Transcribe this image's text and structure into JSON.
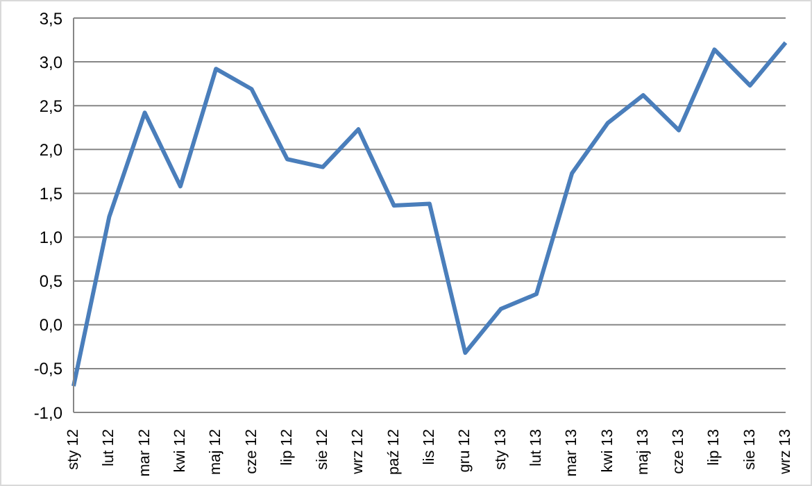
{
  "chart_data": {
    "type": "line",
    "categories": [
      "sty 12",
      "lut 12",
      "mar 12",
      "kwi 12",
      "maj 12",
      "cze 12",
      "lip 12",
      "sie 12",
      "wrz 12",
      "paź 12",
      "lis 12",
      "gru 12",
      "sty 13",
      "lut 13",
      "mar 13",
      "kwi 13",
      "maj 13",
      "cze 13",
      "lip 13",
      "sie 13",
      "wrz 13"
    ],
    "series": [
      {
        "color": "#4a7ebb",
        "values": [
          -0.7,
          1.23,
          2.42,
          1.58,
          2.92,
          2.69,
          1.89,
          1.8,
          2.23,
          1.36,
          1.38,
          -0.32,
          0.18,
          0.35,
          1.73,
          2.3,
          2.62,
          2.22,
          3.14,
          2.73,
          3.22
        ]
      }
    ],
    "ylim": [
      -1,
      3.5
    ],
    "yticks": [
      {
        "value": -1,
        "label": "-1,0"
      },
      {
        "value": -0.5,
        "label": "-0,5"
      },
      {
        "value": 0,
        "label": "0,0"
      },
      {
        "value": 0.5,
        "label": "0,5"
      },
      {
        "value": 1,
        "label": "1,0"
      },
      {
        "value": 1.5,
        "label": "1,5"
      },
      {
        "value": 2,
        "label": "2,0"
      },
      {
        "value": 2.5,
        "label": "2,5"
      },
      {
        "value": 3,
        "label": "3,0"
      },
      {
        "value": 3.5,
        "label": "3,5"
      }
    ],
    "grid": "y",
    "legend": false,
    "marker": "none",
    "line_style": "solid"
  }
}
